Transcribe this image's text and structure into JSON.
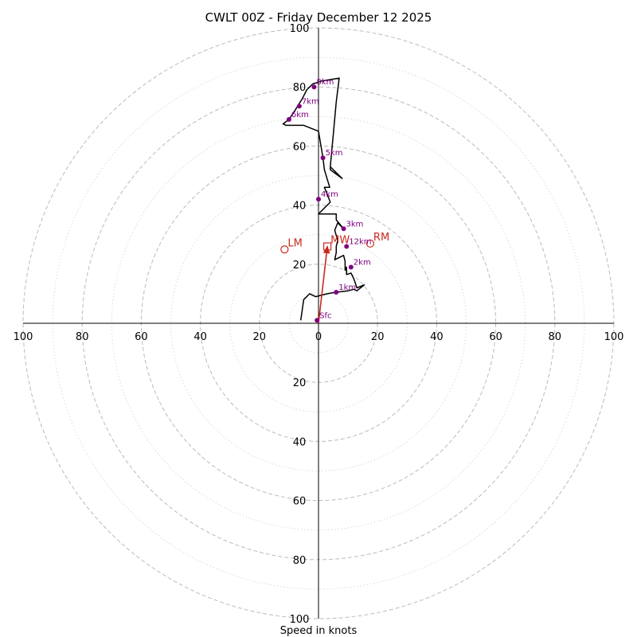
{
  "chart_data": {
    "type": "hodograph",
    "title": "CWLT 00Z - Friday December 12 2025",
    "xlabel": "Speed in knots",
    "ring_max": 100,
    "rings_major": [
      20,
      40,
      60,
      80,
      100
    ],
    "rings_minor": [
      10,
      30,
      50,
      70,
      90
    ],
    "x_tick_labels": [
      "100",
      "80",
      "60",
      "40",
      "20",
      "0",
      "20",
      "40",
      "60",
      "80",
      "100"
    ],
    "x_tick_values": [
      -100,
      -80,
      -60,
      -40,
      -20,
      0,
      20,
      40,
      60,
      80,
      100
    ],
    "y_tick_labels": [
      "100",
      "80",
      "60",
      "40",
      "20",
      "20",
      "40",
      "60",
      "80",
      "100"
    ],
    "y_tick_values": [
      100,
      80,
      60,
      40,
      20,
      -20,
      -40,
      -60,
      -80,
      -100
    ],
    "trace": [
      [
        -6,
        1
      ],
      [
        -5,
        8
      ],
      [
        -3,
        10
      ],
      [
        -1,
        9
      ],
      [
        3,
        10
      ],
      [
        6,
        10.5
      ],
      [
        10,
        11
      ],
      [
        12,
        11.5
      ],
      [
        13,
        11
      ],
      [
        15.5,
        13
      ],
      [
        13,
        12
      ],
      [
        12,
        15
      ],
      [
        11,
        17
      ],
      [
        9.5,
        16.5
      ],
      [
        9.5,
        19
      ],
      [
        9,
        18
      ],
      [
        9,
        21
      ],
      [
        8.5,
        23
      ],
      [
        5.5,
        21.5
      ],
      [
        6,
        24
      ],
      [
        6,
        26
      ],
      [
        6.5,
        28
      ],
      [
        5.5,
        31.5
      ],
      [
        6.5,
        34
      ],
      [
        8.5,
        32
      ],
      [
        6,
        35
      ],
      [
        6,
        37
      ],
      [
        0,
        37
      ],
      [
        4,
        41
      ],
      [
        2,
        46
      ],
      [
        3.8,
        46
      ],
      [
        2,
        52
      ],
      [
        1.5,
        56
      ],
      [
        0,
        65
      ],
      [
        -5,
        67
      ],
      [
        -11,
        67
      ],
      [
        -12,
        67.5
      ],
      [
        -10,
        69
      ],
      [
        -8,
        72
      ],
      [
        -5.5,
        76
      ],
      [
        -4,
        79
      ],
      [
        -2,
        81
      ],
      [
        1,
        82
      ],
      [
        7,
        83
      ],
      [
        6,
        75
      ],
      [
        5,
        64
      ],
      [
        4,
        53
      ],
      [
        8,
        49
      ],
      [
        4,
        52
      ],
      [
        4,
        53
      ]
    ],
    "height_markers": [
      {
        "label": "Sfc",
        "u": -0.5,
        "v": 1
      },
      {
        "label": "1km",
        "u": 6,
        "v": 10.5
      },
      {
        "label": "2km",
        "u": 11,
        "v": 19
      },
      {
        "label": "12km",
        "u": 9.5,
        "v": 26
      },
      {
        "label": "3km",
        "u": 8.5,
        "v": 32
      },
      {
        "label": "4km",
        "u": 0,
        "v": 42
      },
      {
        "label": "5km",
        "u": 1.5,
        "v": 56
      },
      {
        "label": "6km",
        "u": -10,
        "v": 69
      },
      {
        "label": "7km",
        "u": -6.5,
        "v": 73.5
      },
      {
        "label": "8km",
        "u": -1.5,
        "v": 80
      }
    ],
    "storm_motions": [
      {
        "label": "LM",
        "u": -11.5,
        "v": 25,
        "shape": "circle"
      },
      {
        "label": "MW",
        "u": 3,
        "v": 26,
        "shape": "square"
      },
      {
        "label": "RM",
        "u": 17.5,
        "v": 27,
        "shape": "circle"
      }
    ],
    "shear_vector": {
      "from": [
        0,
        0
      ],
      "to": [
        3,
        26
      ]
    },
    "colors": {
      "trace": "#000000",
      "marker": "#800080",
      "storm": "#c8281e",
      "ring": "#bbbbbb",
      "axis": "#000000"
    }
  }
}
